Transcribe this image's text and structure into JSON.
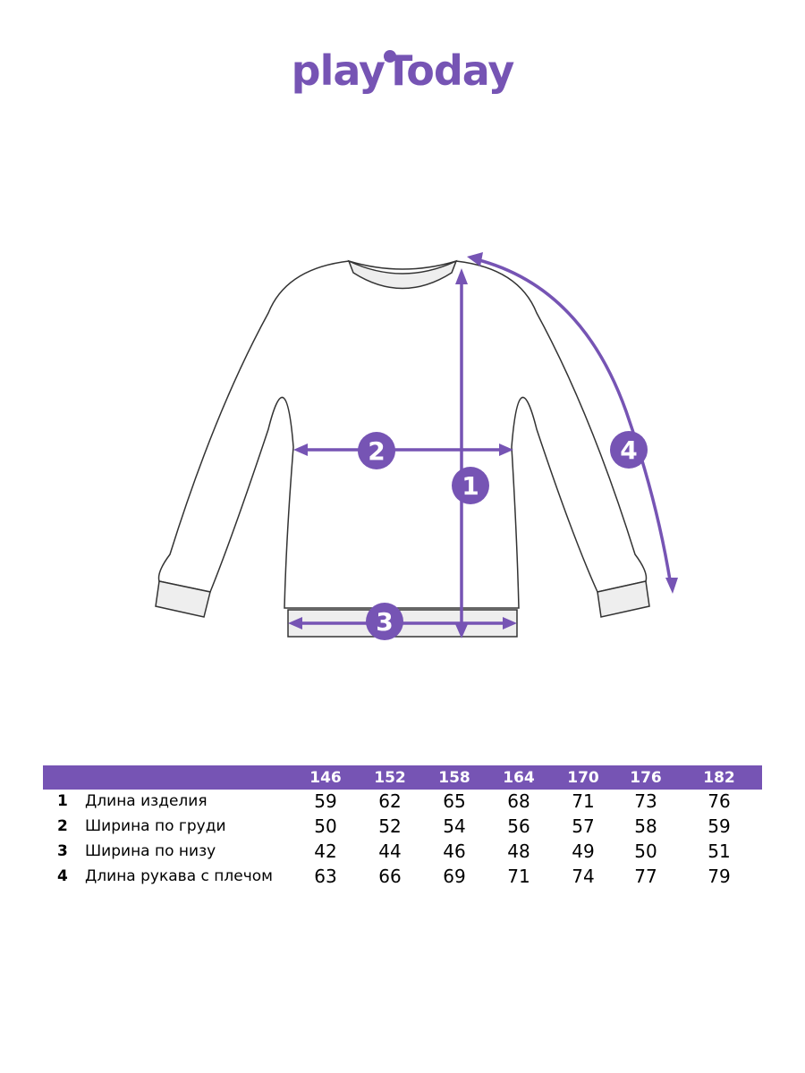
{
  "brand": {
    "logo_text": "playToday",
    "color": "#7654b4"
  },
  "markers": [
    "1",
    "2",
    "3",
    "4"
  ],
  "table": {
    "sizes": [
      "146",
      "152",
      "158",
      "164",
      "170",
      "176",
      "182"
    ],
    "rows": [
      {
        "num": "1",
        "label": "Длина изделия",
        "values": [
          "59",
          "62",
          "65",
          "68",
          "71",
          "73",
          "76"
        ]
      },
      {
        "num": "2",
        "label": "Ширина по груди",
        "values": [
          "50",
          "52",
          "54",
          "56",
          "57",
          "58",
          "59"
        ]
      },
      {
        "num": "3",
        "label": "Ширина по низу",
        "values": [
          "42",
          "44",
          "46",
          "48",
          "49",
          "50",
          "51"
        ]
      },
      {
        "num": "4",
        "label": "Длина рукава с плечом",
        "values": [
          "63",
          "66",
          "69",
          "71",
          "74",
          "77",
          "79"
        ]
      }
    ]
  }
}
